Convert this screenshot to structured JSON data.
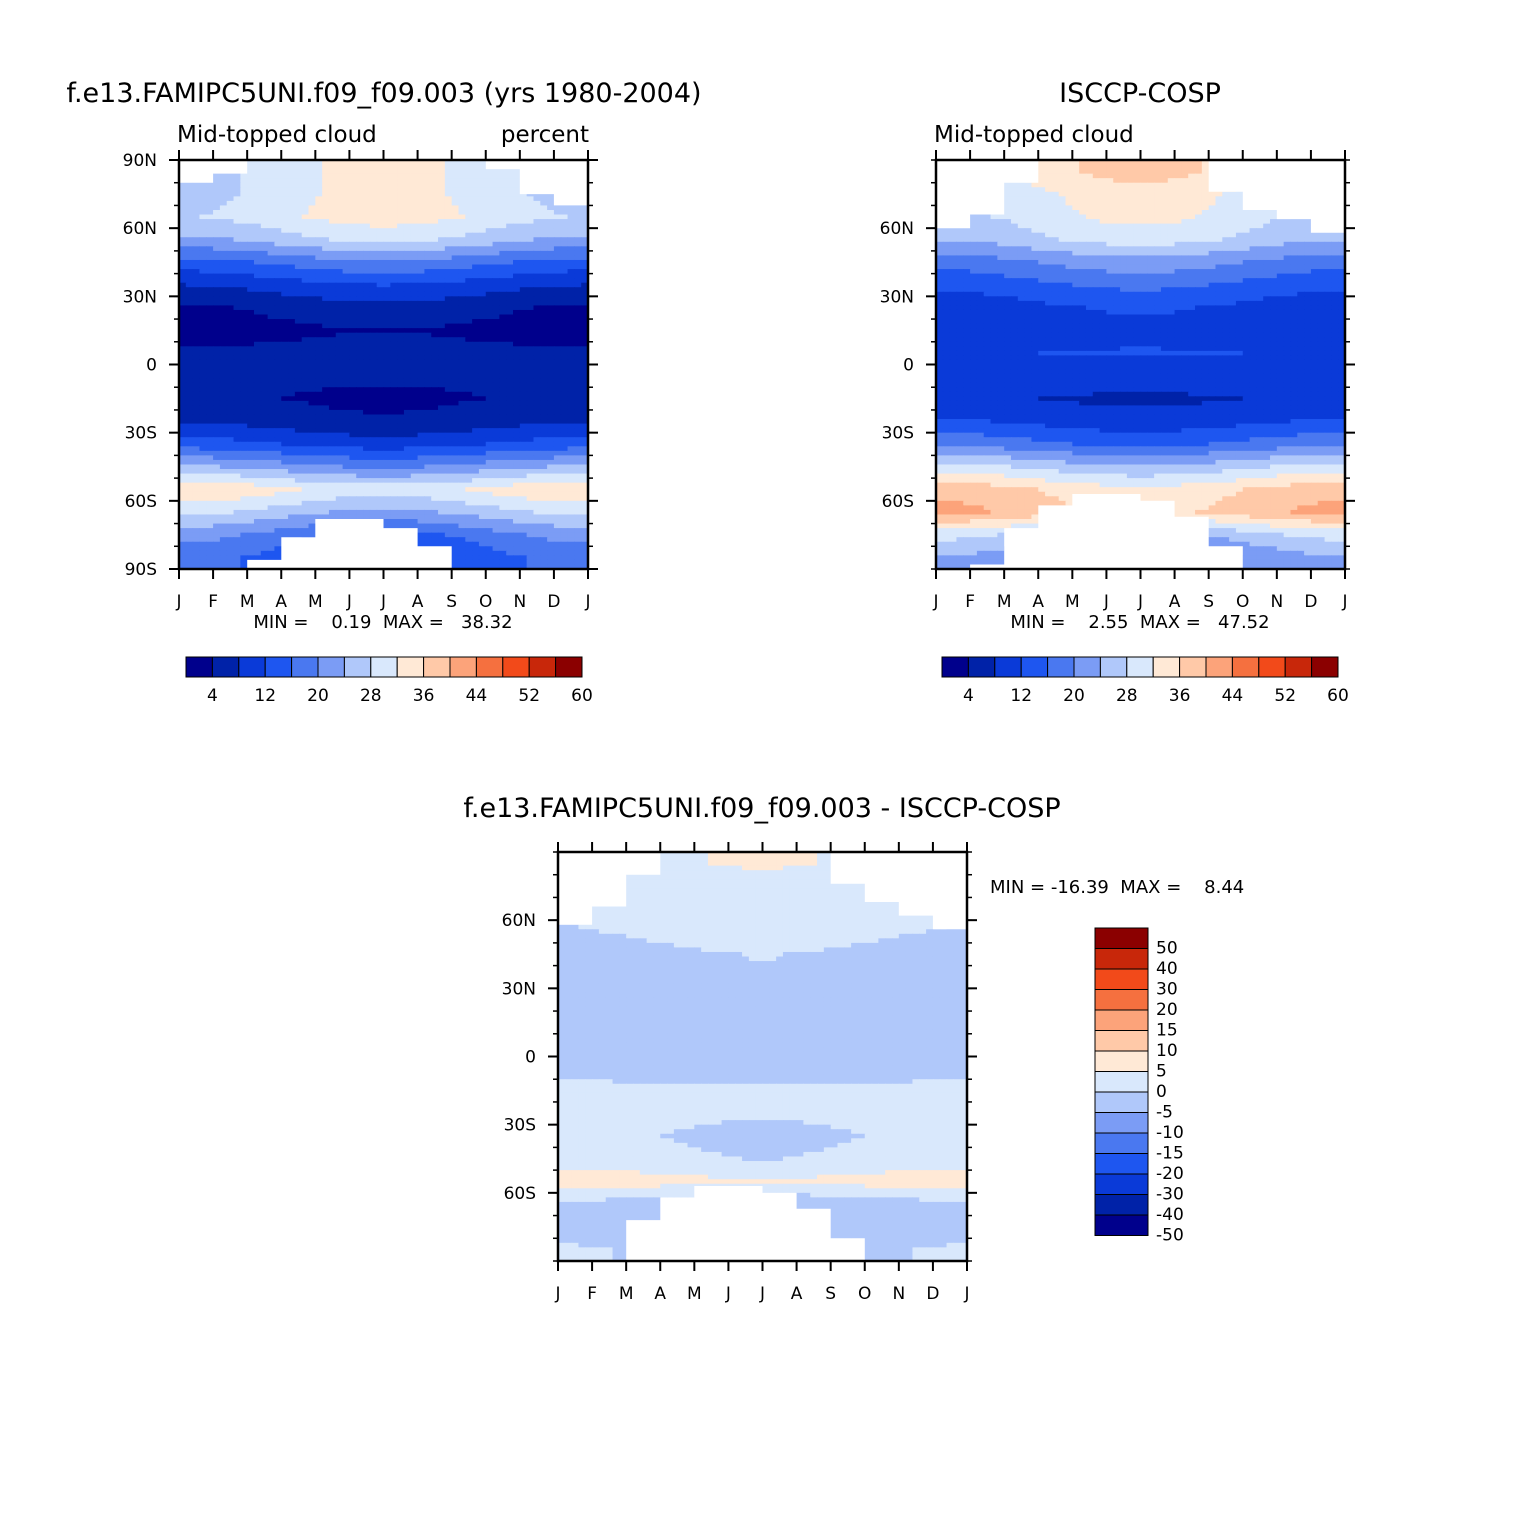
{
  "chart_data": [
    {
      "type": "heatmap",
      "id": "model",
      "title": "f.e13.FAMIPC5UNI.f09_f09.003 (yrs 1980-2004)",
      "left_label": "Mid-topped cloud",
      "right_label": "percent",
      "x_ticks": [
        "J",
        "F",
        "M",
        "A",
        "M",
        "J",
        "J",
        "A",
        "S",
        "O",
        "N",
        "D",
        "J"
      ],
      "y_ticks": [
        {
          "value": 90,
          "label": "90N"
        },
        {
          "value": 60,
          "label": "60N"
        },
        {
          "value": 30,
          "label": "30N"
        },
        {
          "value": 0,
          "label": "0"
        },
        {
          "value": -30,
          "label": "30S"
        },
        {
          "value": -60,
          "label": "60S"
        },
        {
          "value": -90,
          "label": "90S"
        }
      ],
      "ylim": [
        -90,
        90
      ],
      "stats_text": "MIN =    0.19  MAX =   38.32",
      "min": 0.19,
      "max": 38.32,
      "contour_levels": [
        4,
        8,
        12,
        16,
        20,
        24,
        28,
        32,
        36,
        40,
        44,
        48,
        52,
        56,
        60
      ],
      "colorbar_labels": [
        "4",
        "12",
        "20",
        "28",
        "36",
        "44",
        "52",
        "60"
      ],
      "latitude_profile": [
        {
          "lat": 85,
          "value": 30
        },
        {
          "lat": 75,
          "value": 30
        },
        {
          "lat": 65,
          "value": 31
        },
        {
          "lat": 55,
          "value": 26
        },
        {
          "lat": 45,
          "value": 17
        },
        {
          "lat": 35,
          "value": 10
        },
        {
          "lat": 25,
          "value": 5
        },
        {
          "lat": 15,
          "value": 3
        },
        {
          "lat": 5,
          "value": 5
        },
        {
          "lat": -5,
          "value": 5
        },
        {
          "lat": -15,
          "value": 4
        },
        {
          "lat": -25,
          "value": 6
        },
        {
          "lat": -35,
          "value": 12
        },
        {
          "lat": -45,
          "value": 22
        },
        {
          "lat": -55,
          "value": 33
        },
        {
          "lat": -65,
          "value": 26
        },
        {
          "lat": -75,
          "value": 18
        },
        {
          "lat": -85,
          "value": 14
        }
      ]
    },
    {
      "type": "heatmap",
      "id": "obs",
      "title": "ISCCP-COSP",
      "left_label": "Mid-topped cloud",
      "right_label": "",
      "x_ticks": [
        "J",
        "F",
        "M",
        "A",
        "M",
        "J",
        "J",
        "A",
        "S",
        "O",
        "N",
        "D",
        "J"
      ],
      "y_ticks": [
        {
          "value": 60,
          "label": "60N"
        },
        {
          "value": 30,
          "label": "30N"
        },
        {
          "value": 0,
          "label": "0"
        },
        {
          "value": -30,
          "label": "30S"
        },
        {
          "value": -60,
          "label": "60S"
        }
      ],
      "ylim": [
        -90,
        90
      ],
      "stats_text": "MIN =    2.55  MAX =   47.52",
      "min": 2.55,
      "max": 47.52,
      "contour_levels": [
        4,
        8,
        12,
        16,
        20,
        24,
        28,
        32,
        36,
        40,
        44,
        48,
        52,
        56,
        60
      ],
      "colorbar_labels": [
        "4",
        "12",
        "20",
        "28",
        "36",
        "44",
        "52",
        "60"
      ],
      "latitude_profile": [
        {
          "lat": 85,
          "value": 34
        },
        {
          "lat": 75,
          "value": 31
        },
        {
          "lat": 65,
          "value": 30
        },
        {
          "lat": 55,
          "value": 27
        },
        {
          "lat": 45,
          "value": 20
        },
        {
          "lat": 35,
          "value": 15
        },
        {
          "lat": 25,
          "value": 11
        },
        {
          "lat": 15,
          "value": 10
        },
        {
          "lat": 5,
          "value": 12
        },
        {
          "lat": -5,
          "value": 11
        },
        {
          "lat": -15,
          "value": 8
        },
        {
          "lat": -25,
          "value": 11
        },
        {
          "lat": -35,
          "value": 17
        },
        {
          "lat": -45,
          "value": 27
        },
        {
          "lat": -55,
          "value": 36
        },
        {
          "lat": -65,
          "value": 38
        },
        {
          "lat": -75,
          "value": 26
        },
        {
          "lat": -85,
          "value": 20
        }
      ]
    },
    {
      "type": "heatmap",
      "id": "diff",
      "title": "f.e13.FAMIPC5UNI.f09_f09.003 - ISCCP-COSP",
      "x_ticks": [
        "J",
        "F",
        "M",
        "A",
        "M",
        "J",
        "J",
        "A",
        "S",
        "O",
        "N",
        "D",
        "J"
      ],
      "y_ticks": [
        {
          "value": 60,
          "label": "60N"
        },
        {
          "value": 30,
          "label": "30N"
        },
        {
          "value": 0,
          "label": "0"
        },
        {
          "value": -30,
          "label": "30S"
        },
        {
          "value": -60,
          "label": "60S"
        }
      ],
      "ylim": [
        -90,
        90
      ],
      "stats_text": "MIN = -16.39  MAX =    8.44",
      "min": -16.39,
      "max": 8.44,
      "contour_levels": [
        -50,
        -40,
        -30,
        -20,
        -15,
        -10,
        -5,
        0,
        5,
        10,
        15,
        20,
        30,
        40,
        50
      ],
      "colorbar_labels": [
        "50",
        "40",
        "30",
        "20",
        "15",
        "10",
        "5",
        "0",
        "-5",
        "-10",
        "-15",
        "-20",
        "-30",
        "-40",
        "-50"
      ],
      "latitude_profile": [
        {
          "lat": 85,
          "value": -1
        },
        {
          "lat": 75,
          "value": -3
        },
        {
          "lat": 65,
          "value": -3
        },
        {
          "lat": 55,
          "value": -4
        },
        {
          "lat": 45,
          "value": -6
        },
        {
          "lat": 35,
          "value": -6
        },
        {
          "lat": 25,
          "value": -7
        },
        {
          "lat": 15,
          "value": -8
        },
        {
          "lat": 5,
          "value": -8
        },
        {
          "lat": -5,
          "value": -7
        },
        {
          "lat": -15,
          "value": -4
        },
        {
          "lat": -25,
          "value": -4
        },
        {
          "lat": -35,
          "value": -5
        },
        {
          "lat": -45,
          "value": -4
        },
        {
          "lat": -55,
          "value": 2
        },
        {
          "lat": -65,
          "value": -8
        },
        {
          "lat": -75,
          "value": -8
        },
        {
          "lat": -85,
          "value": -6
        }
      ]
    }
  ],
  "colors": {
    "abs_palette": [
      "#00008c",
      "#0022a8",
      "#0a3ad8",
      "#1e56f0",
      "#4a78f0",
      "#7b9cf5",
      "#b0c8fa",
      "#d9e8fc",
      "#ffe9d6",
      "#ffc9a8",
      "#fca37a",
      "#f5703f",
      "#f24a1a",
      "#c8270a",
      "#8b0000"
    ],
    "diff_palette": [
      "#00008c",
      "#0022a8",
      "#0a3ad8",
      "#1e56f0",
      "#4a78f0",
      "#7b9cf5",
      "#b0c8fa",
      "#d9e8fc",
      "#ffe9d6",
      "#ffc9a8",
      "#fca37a",
      "#f5703f",
      "#f24a1a",
      "#c8270a",
      "#8b0000"
    ]
  }
}
